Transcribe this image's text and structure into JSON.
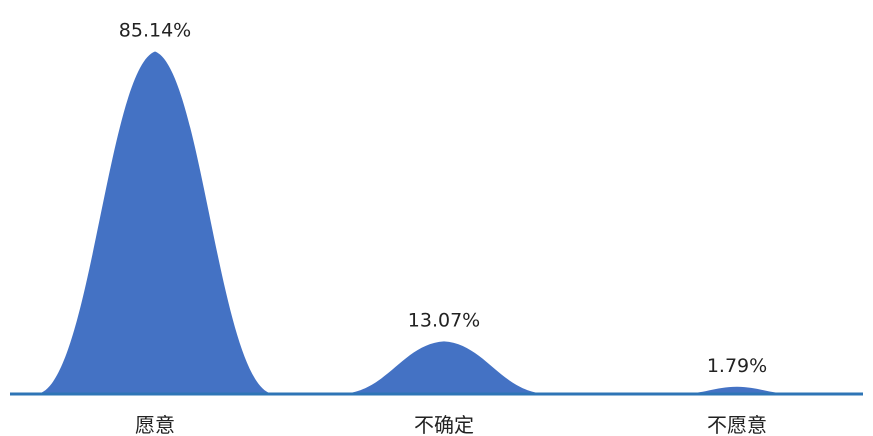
{
  "chart_data": {
    "type": "area",
    "categories": [
      "愿意",
      "不确定",
      "不愿意"
    ],
    "values": [
      85.14,
      13.07,
      1.79
    ],
    "data_labels": [
      "85.14%",
      "13.07%",
      "1.79%"
    ],
    "unit": "%",
    "title": "",
    "xlabel": "",
    "ylabel": "",
    "ylim": [
      0,
      90
    ],
    "grid": false,
    "legend": "none",
    "colors": {
      "fill": "#4472c4",
      "baseline": "#2e75b6",
      "text": "#222222"
    }
  }
}
